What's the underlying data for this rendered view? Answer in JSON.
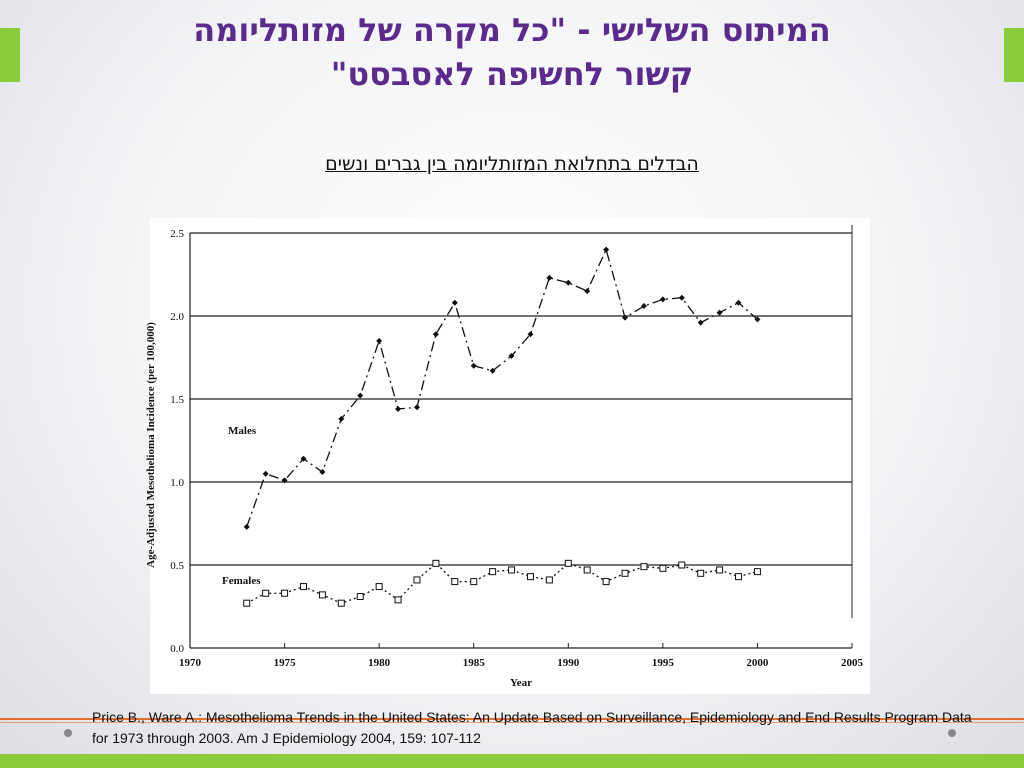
{
  "title": [
    "המיתוס השלישי - \"כל מקרה של מזותליומה",
    "קשור לחשיפה לאסבסט\""
  ],
  "subtitle": "הבדלים בתחלואת המזותליומה בין גברים ונשים",
  "citation": "Price B., Ware A.: Mesothelioma Trends in the United States: An Update Based on Surveillance, Epidemiology and End Results Program Data for 1973 through 2003. Am J Epidemiology 2004, 159: 107-112",
  "chart_data": {
    "type": "line",
    "x_label": "Year",
    "y_label": "Age-Adjusted Mesothelioma Incidence (per 100,000)",
    "x": [
      1973,
      1974,
      1975,
      1976,
      1977,
      1978,
      1979,
      1980,
      1981,
      1982,
      1983,
      1984,
      1985,
      1986,
      1987,
      1988,
      1989,
      1990,
      1991,
      1992,
      1993,
      1994,
      1995,
      1996,
      1997,
      1998,
      1999,
      2000
    ],
    "series": [
      {
        "name": "Males",
        "color": "#111111",
        "values": [
          0.73,
          1.05,
          1.01,
          1.14,
          1.06,
          1.38,
          1.52,
          1.85,
          1.44,
          1.45,
          1.89,
          2.08,
          1.7,
          1.67,
          1.76,
          1.89,
          2.23,
          2.2,
          2.15,
          2.4,
          1.99,
          2.06,
          2.1,
          2.11,
          1.96,
          2.02,
          2.08,
          1.98
        ]
      },
      {
        "name": "Females",
        "color": "#111111",
        "values": [
          0.27,
          0.33,
          0.33,
          0.37,
          0.32,
          0.27,
          0.31,
          0.37,
          0.29,
          0.41,
          0.51,
          0.4,
          0.4,
          0.46,
          0.47,
          0.43,
          0.41,
          0.51,
          0.47,
          0.4,
          0.45,
          0.49,
          0.48,
          0.5,
          0.45,
          0.47,
          0.43,
          0.46
        ]
      }
    ],
    "xlim": [
      1970,
      2005
    ],
    "xticks": [
      1970,
      1975,
      1980,
      1985,
      1990,
      1995,
      2000,
      2005
    ],
    "ylim": [
      0,
      2.5
    ],
    "yticks": [
      {
        "value": 0,
        "label": "0.0"
      },
      0.5,
      {
        "value": 1,
        "label": "1.0"
      },
      1.5,
      {
        "value": 2,
        "label": "2.0"
      },
      2.5
    ],
    "grid": true
  }
}
